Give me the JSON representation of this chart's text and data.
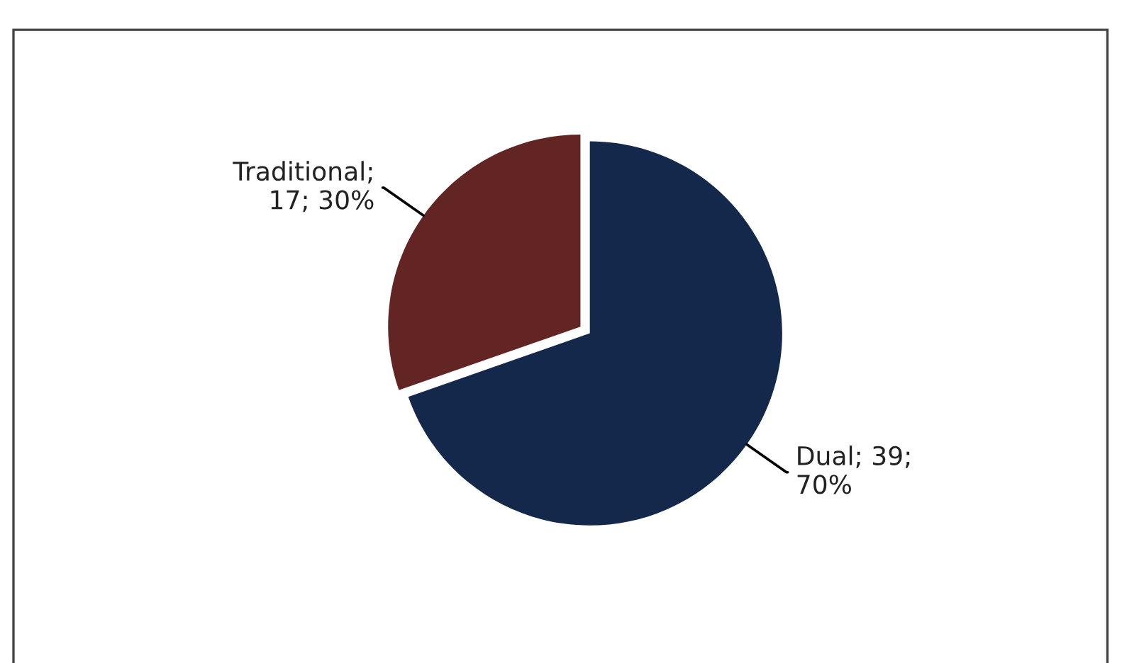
{
  "chart_data": {
    "type": "pie",
    "categories": [
      "Dual",
      "Traditional"
    ],
    "values": [
      39,
      17
    ],
    "colors": [
      "#14284b",
      "#632523"
    ],
    "value_labels": [
      "; 39;\n70%",
      ";\n17; 30%"
    ],
    "legend": false
  }
}
